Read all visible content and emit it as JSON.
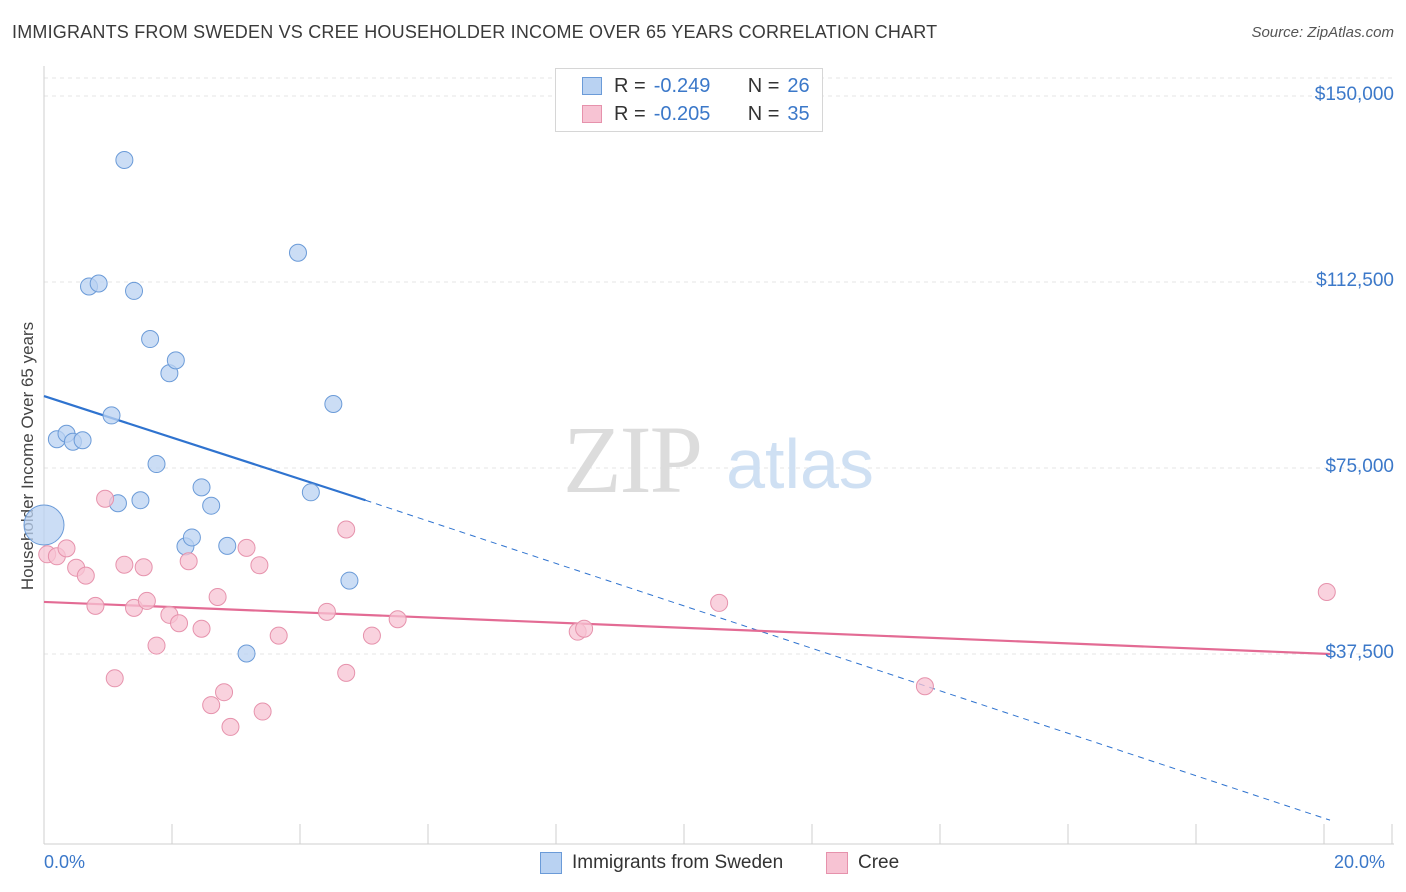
{
  "header": {
    "title": "IMMIGRANTS FROM SWEDEN VS CREE HOUSEHOLDER INCOME OVER 65 YEARS CORRELATION CHART",
    "source": "Source: ZipAtlas.com"
  },
  "watermark": {
    "zip": "ZIP",
    "atlas": "atlas"
  },
  "legend": {
    "rows": [
      {
        "r_label": "R =",
        "r_value": "-0.249",
        "n_label": "N =",
        "n_value": "26"
      },
      {
        "r_label": "R =",
        "r_value": "-0.205",
        "n_label": "N =",
        "n_value": "35"
      }
    ]
  },
  "bottom_legend": {
    "series1": "Immigrants from Sweden",
    "series2": "Cree"
  },
  "colors": {
    "blue_fill": "#b9d2f2",
    "blue_stroke": "#6b9bd8",
    "blue_line": "#2f73cf",
    "pink_fill": "#f7c3d3",
    "pink_stroke": "#e692ac",
    "pink_line": "#e36b94",
    "tick_text": "#3b78c9"
  },
  "chart_data": {
    "type": "scatter",
    "title": "IMMIGRANTS FROM SWEDEN VS CREE HOUSEHOLDER INCOME OVER 65 YEARS CORRELATION CHART",
    "xlabel": "",
    "ylabel": "Householder Income Over 65 years",
    "xlim": [
      0,
      20
    ],
    "ylim": [
      0,
      156000
    ],
    "x_tick_labels": [
      {
        "value": 0,
        "label": "0.0%"
      },
      {
        "value": 20,
        "label": "20.0%"
      }
    ],
    "y_ticks": [
      {
        "value": 150000,
        "label": "$150,000"
      },
      {
        "value": 112500,
        "label": "$112,500"
      },
      {
        "value": 75000,
        "label": "$75,000"
      },
      {
        "value": 37500,
        "label": "$37,500"
      }
    ],
    "series": [
      {
        "name": "Immigrants from Sweden",
        "color": "blue",
        "points": [
          {
            "x": 0.0,
            "y": 63500,
            "big": true
          },
          {
            "x": 0.2,
            "y": 80800
          },
          {
            "x": 0.35,
            "y": 81900
          },
          {
            "x": 0.45,
            "y": 80300
          },
          {
            "x": 0.6,
            "y": 80600
          },
          {
            "x": 0.7,
            "y": 111600
          },
          {
            "x": 0.85,
            "y": 112200
          },
          {
            "x": 1.05,
            "y": 85600
          },
          {
            "x": 1.15,
            "y": 67900
          },
          {
            "x": 1.25,
            "y": 137100
          },
          {
            "x": 1.4,
            "y": 110700
          },
          {
            "x": 1.5,
            "y": 68500
          },
          {
            "x": 1.65,
            "y": 101000
          },
          {
            "x": 1.75,
            "y": 75800
          },
          {
            "x": 1.95,
            "y": 94100
          },
          {
            "x": 2.05,
            "y": 96700
          },
          {
            "x": 2.2,
            "y": 59200
          },
          {
            "x": 2.3,
            "y": 61000
          },
          {
            "x": 2.45,
            "y": 71100
          },
          {
            "x": 2.6,
            "y": 67400
          },
          {
            "x": 2.85,
            "y": 59300
          },
          {
            "x": 3.15,
            "y": 37600
          },
          {
            "x": 3.95,
            "y": 118400
          },
          {
            "x": 4.15,
            "y": 70100
          },
          {
            "x": 4.5,
            "y": 87900
          },
          {
            "x": 4.75,
            "y": 52300
          }
        ]
      },
      {
        "name": "Cree",
        "color": "pink",
        "points": [
          {
            "x": 0.05,
            "y": 57600
          },
          {
            "x": 0.2,
            "y": 57200
          },
          {
            "x": 0.35,
            "y": 58800
          },
          {
            "x": 0.5,
            "y": 54900
          },
          {
            "x": 0.65,
            "y": 53300
          },
          {
            "x": 0.8,
            "y": 47200
          },
          {
            "x": 0.95,
            "y": 68800
          },
          {
            "x": 1.1,
            "y": 32600
          },
          {
            "x": 1.25,
            "y": 55500
          },
          {
            "x": 1.4,
            "y": 46800
          },
          {
            "x": 1.55,
            "y": 55000
          },
          {
            "x": 1.6,
            "y": 48200
          },
          {
            "x": 1.75,
            "y": 39200
          },
          {
            "x": 1.95,
            "y": 45400
          },
          {
            "x": 2.1,
            "y": 43700
          },
          {
            "x": 2.25,
            "y": 56200
          },
          {
            "x": 2.45,
            "y": 42600
          },
          {
            "x": 2.6,
            "y": 27200
          },
          {
            "x": 2.7,
            "y": 49000
          },
          {
            "x": 2.8,
            "y": 29800
          },
          {
            "x": 2.9,
            "y": 22800
          },
          {
            "x": 3.15,
            "y": 58900
          },
          {
            "x": 3.35,
            "y": 55400
          },
          {
            "x": 3.4,
            "y": 25900
          },
          {
            "x": 3.65,
            "y": 41200
          },
          {
            "x": 4.4,
            "y": 46000
          },
          {
            "x": 4.7,
            "y": 33700
          },
          {
            "x": 4.7,
            "y": 62600
          },
          {
            "x": 5.1,
            "y": 41200
          },
          {
            "x": 5.5,
            "y": 44500
          },
          {
            "x": 8.3,
            "y": 42000
          },
          {
            "x": 8.4,
            "y": 42600
          },
          {
            "x": 10.5,
            "y": 47800
          },
          {
            "x": 13.7,
            "y": 31000
          },
          {
            "x": 19.95,
            "y": 50000
          }
        ]
      }
    ],
    "trend_lines": [
      {
        "series": "Immigrants from Sweden",
        "solid_from": [
          0,
          89500
        ],
        "solid_to": [
          5.0,
          68500
        ],
        "dashed_to": [
          20.0,
          4000
        ]
      },
      {
        "series": "Cree",
        "from": [
          0,
          48000
        ],
        "to": [
          20.0,
          37500
        ]
      }
    ]
  }
}
